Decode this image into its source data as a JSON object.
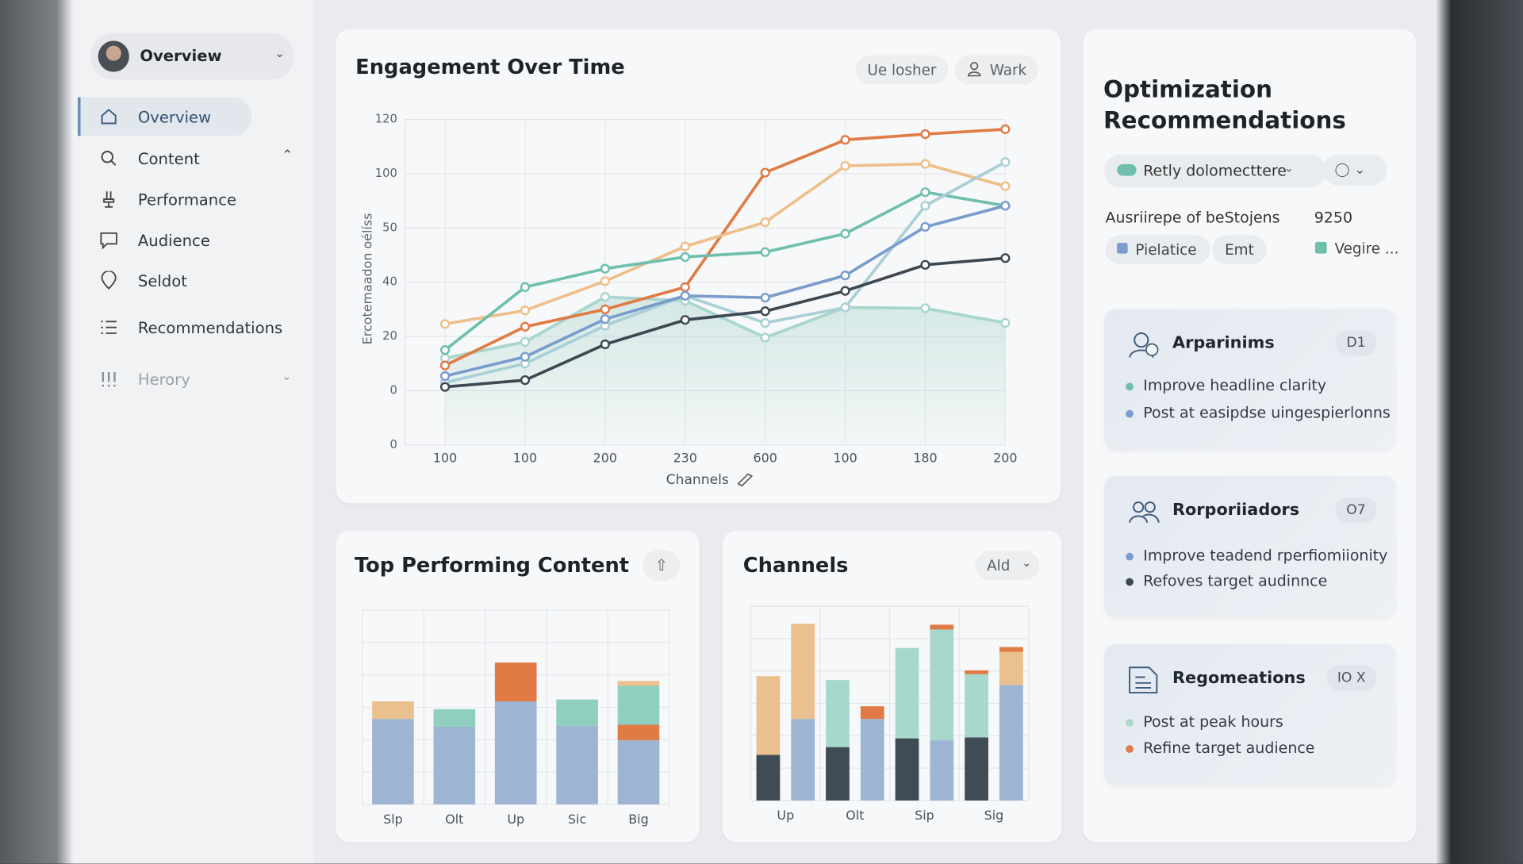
{
  "sidebar": {
    "profile": "Overview",
    "nav": [
      "Overview",
      "Content",
      "Performance",
      "Audience",
      "Seldot",
      "Recommendations",
      "Herory"
    ]
  },
  "engagement_controls": [
    "Ue losher",
    "Wark"
  ],
  "channels_control": "Ald",
  "recommendations": {
    "title": "Optimization Recommendations",
    "filter": "Retly dolomecttere",
    "summary_label": "Ausriirepe of beStojens",
    "summary_value": 9250,
    "tags": [
      "Pielatice",
      "Emt",
      "Vegire ..."
    ],
    "cards": [
      {
        "title": "Arparinims",
        "badge": "D1",
        "items": [
          "Improve headline clarity",
          "Post at easipdse uingespierlonns"
        ]
      },
      {
        "title": "Rorporiiadors",
        "badge": "O7",
        "items": [
          "Improve teadend rperfiomiionity",
          "Refoves target audinnce"
        ]
      },
      {
        "title": "Regomeations",
        "badge": "IO X",
        "items": [
          "Post at peak hours",
          "Refine target audience"
        ]
      }
    ]
  },
  "chart_data": [
    {
      "type": "line",
      "title": "Engagement Over Time",
      "x_label": "Channels",
      "y_label": "Ercotemaadon oélíss",
      "categories": [
        "100",
        "100",
        "200",
        "230",
        "600",
        "100",
        "180",
        "200"
      ],
      "ylim": [
        0,
        120
      ],
      "yticks": [
        0,
        {
          "value": 20,
          "label": "0"
        },
        {
          "value": 40,
          "label": "20"
        },
        {
          "value": 60,
          "label": "40"
        },
        {
          "value": 80,
          "label": "50"
        },
        100,
        120
      ],
      "grid": true,
      "series": [
        {
          "color": "#a8d5cc",
          "values": [
            32,
            38,
            54.6,
            53.2,
            39.6,
            50.7,
            50.4,
            45
          ],
          "area": true
        },
        {
          "color": "#e07b45",
          "values": [
            29.3,
            43.6,
            50,
            58.2,
            100.4,
            112.5,
            114.6,
            116.4
          ]
        },
        {
          "color": "#efbf8a",
          "values": [
            44.6,
            49.6,
            60.4,
            73.2,
            82.1,
            102.9,
            103.6,
            95.4
          ]
        },
        {
          "color": "#6fbfad",
          "values": [
            35,
            58.2,
            65,
            69.3,
            71.1,
            77.9,
            93.2,
            88.2
          ]
        },
        {
          "color": "#a9cfd6",
          "values": [
            23,
            30,
            44,
            55,
            45,
            50.7,
            88.2,
            104.3
          ]
        },
        {
          "color": "#7a9ccc",
          "values": [
            25.4,
            32.5,
            46.4,
            55,
            54.3,
            62.5,
            80.4,
            88.2
          ]
        },
        {
          "color": "#3d4852",
          "values": [
            21.4,
            23.9,
            37.1,
            46.1,
            49.3,
            56.8,
            66.4,
            68.9
          ]
        }
      ]
    },
    {
      "type": "stacked_bar",
      "title": "Top Performing Content",
      "categories": [
        "Slp",
        "Olt",
        "Up",
        "Sic",
        "Big"
      ],
      "ylim": [
        0,
        200
      ],
      "series": [
        {
          "color": "#9db5d3",
          "values": [
            88,
            80,
            106,
            81,
            66
          ]
        },
        {
          "color": "#e07b45",
          "values": [
            0,
            0,
            40,
            0,
            16
          ]
        },
        {
          "color": "#8fcfc0",
          "values": [
            0,
            18,
            0,
            27,
            40
          ]
        },
        {
          "color": "#eac08e",
          "values": [
            18,
            0,
            0,
            0,
            5
          ]
        }
      ]
    },
    {
      "type": "stacked_bar",
      "title": "Channels",
      "categories": [
        "Up",
        null,
        "Olt",
        null,
        "Sip",
        null,
        "Sig",
        null
      ],
      "ylim": [
        0,
        200
      ],
      "series": [
        {
          "color": "#3f4c56",
          "values": [
            47,
            0,
            55,
            0,
            64,
            0,
            65,
            0
          ]
        },
        {
          "color": "#9db5d3",
          "values": [
            0,
            84,
            0,
            84,
            0,
            62,
            0,
            119
          ]
        },
        {
          "color": "#a8d8cc",
          "values": [
            0,
            0,
            69,
            0,
            93,
            114,
            65,
            0
          ]
        },
        {
          "color": "#eac08e",
          "values": [
            81,
            98,
            0,
            0,
            0,
            0,
            0,
            34
          ]
        },
        {
          "color": "#e07b45",
          "values": [
            0,
            0,
            0,
            13,
            0,
            5,
            4,
            5
          ]
        }
      ]
    }
  ]
}
